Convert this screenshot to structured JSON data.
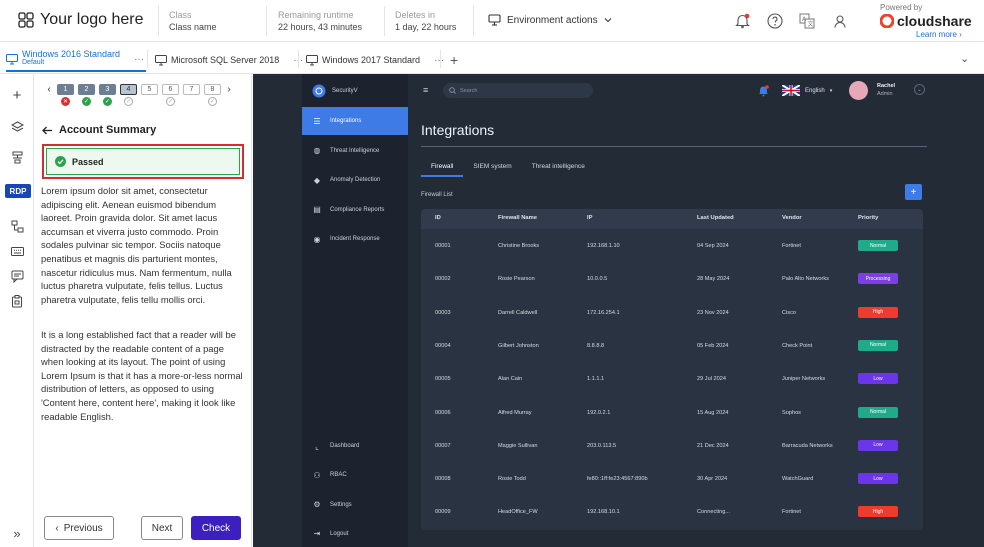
{
  "header": {
    "logo_text": "Your logo here",
    "class_label": "Class",
    "class_value": "Class name",
    "runtime_label": "Remaining runtime",
    "runtime_value": "22 hours, 43 minutes",
    "deletes_label": "Deletes in",
    "deletes_value": "1 day, 22 hours",
    "env_actions": "Environment actions",
    "powered_by": "Powered by",
    "brand": "cloudshare",
    "learn_more": "Learn more ›"
  },
  "tabs": [
    {
      "label": "Windows 2016 Standard",
      "sub": "Default",
      "more": "···"
    },
    {
      "label": "Microsoft SQL Server 2018",
      "more": "···"
    },
    {
      "label": "Windows 2017 Standard",
      "more": "···"
    }
  ],
  "tab_add": "+",
  "tab_chevron": "⌄",
  "leftnav": {
    "rdp": "RDP",
    "collapse": "»"
  },
  "steps": [
    {
      "n": "1",
      "state": "fail"
    },
    {
      "n": "2",
      "state": "ok"
    },
    {
      "n": "3",
      "state": "ok"
    },
    {
      "n": "4",
      "state": "pending"
    },
    {
      "n": "5",
      "state": "none"
    },
    {
      "n": "6",
      "state": "pending"
    },
    {
      "n": "7",
      "state": "none"
    },
    {
      "n": "8",
      "state": "pending"
    }
  ],
  "step_prev": "‹",
  "step_next": "›",
  "panel": {
    "back_title": "Account Summary",
    "passed": "Passed",
    "para1": "Lorem ipsum dolor sit amet, consectetur adipiscing elit. Aenean euismod bibendum laoreet. Proin gravida dolor. Sit amet lacus accumsan et viverra justo commodo. Proin sodales pulvinar sic tempor. Sociis natoque penatibus et magnis dis parturient montes, nascetur ridiculus mus. Nam fermentum, nulla luctus pharetra vulputate, felis tellus. Luctus pharetra vulputate, felis tellu mollis orci.",
    "para2": "It is a long established fact that a reader will be distracted by the readable content of a page when looking at its layout. The point of using Lorem Ipsum is that it has a more-or-less normal distribution of letters, as opposed to using 'Content here, content here', making it look like readable English.",
    "prev": "Previous",
    "next": "Next",
    "check": "Check"
  },
  "app": {
    "brand": "SecurityV",
    "search_placeholder": "Search",
    "language": "English",
    "user_name": "Rachel",
    "user_role": "Admin",
    "sidebar": [
      "Integrations",
      "Threat Intelligence",
      "Anomaly Detection",
      "Compliance Reports",
      "Incident Response"
    ],
    "sidebar_bottom": [
      "Dashboard",
      "RBAC",
      "Settings",
      "Logout"
    ],
    "title": "Integrations",
    "subtabs": [
      "Firewall",
      "SIEM system",
      "Threat intelligence"
    ],
    "list_label": "Firewall List",
    "add": "+",
    "columns": [
      "ID",
      "Firewall Name",
      "IP",
      "Last Updated",
      "Vendor",
      "Priority"
    ],
    "rows": [
      {
        "id": "00001",
        "name": "Christine Brooks",
        "ip": "192.168.1.10",
        "updated": "04 Sep 2024",
        "vendor": "Fortinet",
        "priority": "Normal"
      },
      {
        "id": "00002",
        "name": "Rosie Pearson",
        "ip": "10.0.0.5",
        "updated": "28 May 2024",
        "vendor": "Palo Alto Networks",
        "priority": "Processing"
      },
      {
        "id": "00003",
        "name": "Darrell Caldwell",
        "ip": "172.16.254.1",
        "updated": "23 Nov 2024",
        "vendor": "Cisco",
        "priority": "High"
      },
      {
        "id": "00004",
        "name": "Gilbert Johnston",
        "ip": "8.8.8.8",
        "updated": "05 Feb 2024",
        "vendor": "Check Point",
        "priority": "Normal"
      },
      {
        "id": "00005",
        "name": "Alan Cain",
        "ip": "1.1.1.1",
        "updated": "29 Jul 2024",
        "vendor": "Juniper Networks",
        "priority": "Low"
      },
      {
        "id": "00006",
        "name": "Alfred Murray",
        "ip": "192.0.2.1",
        "updated": "15 Aug 2024",
        "vendor": "Sophos",
        "priority": "Normal"
      },
      {
        "id": "00007",
        "name": "Maggie Sullivan",
        "ip": "203.0.113.5",
        "updated": "21 Dec 2024",
        "vendor": "Barracuda Networks",
        "priority": "Low"
      },
      {
        "id": "00008",
        "name": "Rosie Todd",
        "ip": "fe80::1ff:fe23:4567:890b",
        "updated": "30 Apr 2024",
        "vendor": "WatchGuard",
        "priority": "Low"
      },
      {
        "id": "00009",
        "name": "HeadOffice_FW",
        "ip": "192.168.10.1",
        "updated": "Connecting...",
        "vendor": "Fortinet",
        "priority": "High"
      }
    ]
  },
  "colors": {
    "Normal": "#1fab89",
    "Processing": "#7b3fe4",
    "High": "#ef3b2d",
    "Low": "#6b35e8",
    "accent": "#3b1fbf"
  }
}
